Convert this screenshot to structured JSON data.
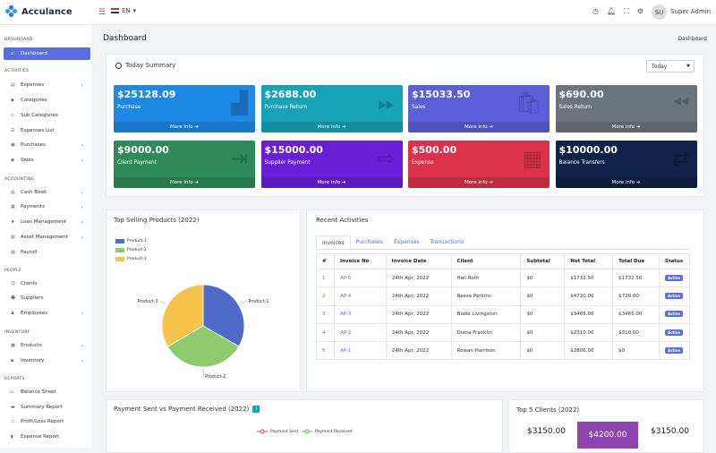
{
  "brand": {
    "name": "Acculance"
  },
  "header": {
    "lang": "EN",
    "avatar_initials": "SU",
    "user": "Super Admin"
  },
  "sidebar": {
    "sections": [
      {
        "title": "Dashboard",
        "items": [
          {
            "label": "Dashboard",
            "active": true
          }
        ]
      },
      {
        "title": "Activities",
        "items": [
          {
            "label": "Expenses",
            "chevron": true
          },
          {
            "label": "Categories"
          },
          {
            "label": "Sub Categories"
          },
          {
            "label": "Expenses List"
          },
          {
            "label": "Purchases",
            "chevron": true
          },
          {
            "label": "Sales",
            "chevron": true
          }
        ]
      },
      {
        "title": "Accounting",
        "items": [
          {
            "label": "Cash Book",
            "chevron": true
          },
          {
            "label": "Payments",
            "chevron": true
          },
          {
            "label": "Loan Management",
            "chevron": true
          },
          {
            "label": "Asset Management",
            "chevron": true
          },
          {
            "label": "Payroll"
          }
        ]
      },
      {
        "title": "People",
        "items": [
          {
            "label": "Clients"
          },
          {
            "label": "Suppliers"
          },
          {
            "label": "Employees",
            "chevron": true
          }
        ]
      },
      {
        "title": "Inventory",
        "items": [
          {
            "label": "Products",
            "chevron": true
          },
          {
            "label": "Inventory",
            "chevron": true
          }
        ]
      },
      {
        "title": "Reports",
        "items": [
          {
            "label": "Balance Sheet"
          },
          {
            "label": "Summary Report"
          },
          {
            "label": "Profit/Loss Report"
          },
          {
            "label": "Expense Report"
          }
        ]
      }
    ]
  },
  "page": {
    "title": "Dashboard",
    "breadcrumb": "Dashboard"
  },
  "summary": {
    "title": "Today Summary",
    "period": "Today",
    "tiles": [
      {
        "amount": "$25128.09",
        "label": "Purchase",
        "more": "More info",
        "color": "#1e88e5",
        "icon": "dolly-icon"
      },
      {
        "amount": "$2688.00",
        "label": "Purchase Return",
        "more": "More info",
        "color": "#17a2b8",
        "icon": "fast-forward-icon"
      },
      {
        "amount": "$15033.50",
        "label": "Sales",
        "more": "More info",
        "color": "#5b5fd9",
        "icon": "shopping-bag-icon"
      },
      {
        "amount": "$690.00",
        "label": "Sales Return",
        "more": "More info",
        "color": "#6c757d",
        "icon": "rewind-icon"
      },
      {
        "amount": "$9000.00",
        "label": "Client Payment",
        "more": "More info",
        "color": "#2e8b57",
        "icon": "sign-in-icon"
      },
      {
        "amount": "$15000.00",
        "label": "Supplier Payment",
        "more": "More info",
        "color": "#6a1fd6",
        "icon": "sign-out-icon"
      },
      {
        "amount": "$500.00",
        "label": "Expense",
        "more": "More info",
        "color": "#d9324a",
        "icon": "calculator-icon"
      },
      {
        "amount": "$10000.00",
        "label": "Balance Transfers",
        "more": "More info",
        "color": "#10224a",
        "icon": "exchange-icon"
      }
    ]
  },
  "top_selling": {
    "title": "Top Selling Products (2022)",
    "legend": [
      "Product-1",
      "Product-2",
      "Product-3"
    ],
    "labels": [
      "Product-1",
      "Product-2",
      "Product-3"
    ]
  },
  "chart_data": {
    "type": "pie",
    "title": "Top Selling Products (2022)",
    "categories": [
      "Product-1",
      "Product-2",
      "Product-3"
    ],
    "values": [
      33.3,
      33.3,
      33.4
    ],
    "colors": [
      "#4e6cc7",
      "#8fcb6e",
      "#f7c34a"
    ],
    "legend_position": "top-left"
  },
  "recent": {
    "title": "Recent Activities",
    "tabs": [
      "Invoices",
      "Purchases",
      "Expenses",
      "Transactions"
    ],
    "columns": [
      "#",
      "Invoice No",
      "Invoice Date",
      "Client",
      "Subtotal",
      "Net Total",
      "Total Due",
      "Status"
    ],
    "rows": [
      [
        "1",
        "AP-5",
        "24th Apr, 2022",
        "Hali Roth",
        "$0",
        "$1732.50",
        "$1732.50",
        "Active"
      ],
      [
        "2",
        "AP-4",
        "24th Apr, 2022",
        "Reese Perkins",
        "$0",
        "$4720.00",
        "$720.00",
        "Active"
      ],
      [
        "3",
        "AP-3",
        "24th Apr, 2022",
        "Blake Livingston",
        "$0",
        "$3465.00",
        "$3465.00",
        "Active"
      ],
      [
        "4",
        "AP-2",
        "24th Apr, 2022",
        "Diana Franklin",
        "$0",
        "$2310.00",
        "$310.00",
        "Active"
      ],
      [
        "5",
        "AP-1",
        "24th Apr, 2022",
        "Rowan Harrison",
        "$0",
        "$2806.00",
        "$0",
        "Active"
      ]
    ]
  },
  "payments": {
    "title": "Payment Sent vs Payment Received (2022)",
    "legend": [
      "Payment Sent",
      "Payment Received"
    ],
    "colors": [
      "#e0405a",
      "#5cb85c"
    ]
  },
  "clients": {
    "title": "Top 5 Clients (2022)",
    "values": [
      "$3150.00",
      "$4200.00",
      "$3150.00"
    ]
  }
}
